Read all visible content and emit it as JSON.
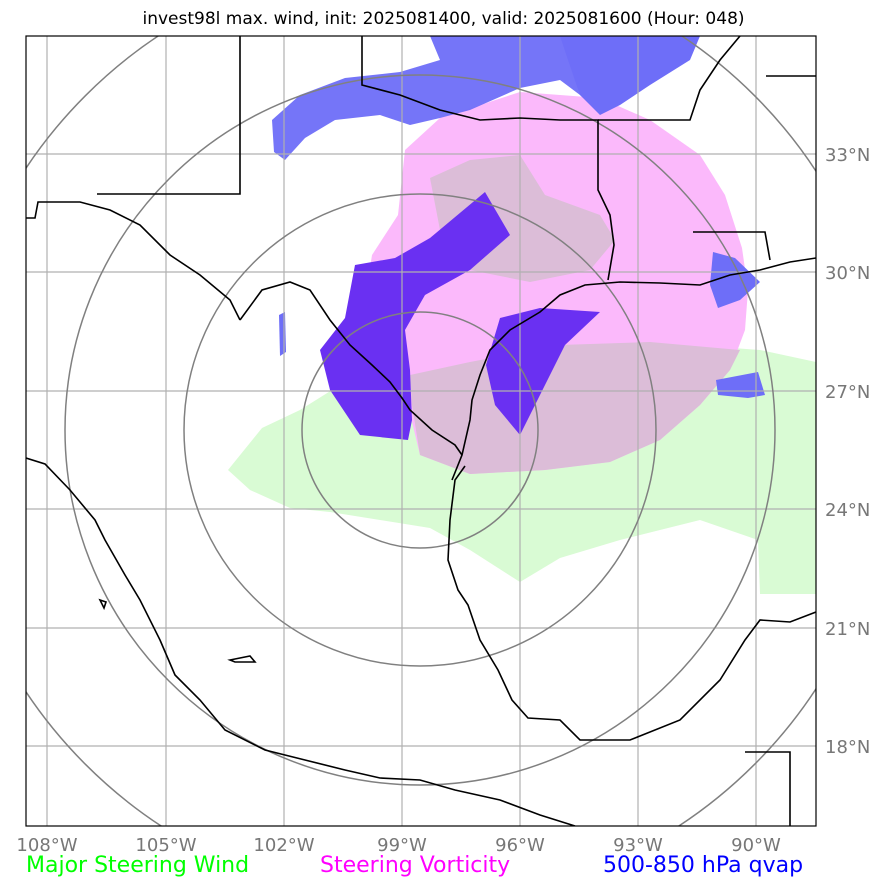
{
  "title": "invest98l max. wind, init: 2025081400, valid: 2025081600 (Hour: 048)",
  "lon_ticks": [
    "108°W",
    "105°W",
    "102°W",
    "99°W",
    "96°W",
    "93°W",
    "90°W"
  ],
  "lat_ticks": [
    "33°N",
    "30°N",
    "27°N",
    "24°N",
    "21°N",
    "18°N"
  ],
  "legend": [
    {
      "label": "Major Steering Wind",
      "color": "#00ff00"
    },
    {
      "label": "Steering Vorticity",
      "color": "#ff00ff"
    },
    {
      "label": "500-850 hPa qvap",
      "color": "#0000ff"
    }
  ],
  "colors": {
    "wind_fill": "#d9fbd4",
    "vorticity_fill": "#fbb9fb",
    "vort_wind_overlap": "#dcbdd8",
    "qvap_fill": "#6e6ef8",
    "qvap_dark": "#6a30f2",
    "grid": "#b0b0b0",
    "range_rings": "#808080",
    "tick_label": "#777777"
  }
}
